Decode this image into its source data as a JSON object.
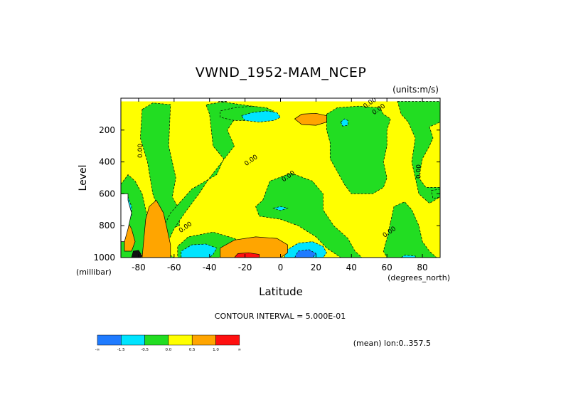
{
  "chart_data": {
    "type": "heatmap",
    "title": "VWND_1952-MAM_NCEP",
    "units_label": "(units:m/s)",
    "xlabel": "Latitude",
    "ylabel": "Level",
    "x_unit_label": "(degrees_north)",
    "y_unit_label": "(millibar)",
    "xlim": [
      -90,
      90
    ],
    "ylim": [
      1000,
      0
    ],
    "x_ticks": [
      -80,
      -60,
      -40,
      -20,
      0,
      20,
      40,
      60,
      80
    ],
    "y_ticks": [
      200,
      400,
      600,
      800,
      1000
    ],
    "contour_interval_label": "CONTOUR INTERVAL = 5.000E-01",
    "footer_label": "(mean) lon:0..357.5",
    "contour_labels": [
      {
        "text": "0.00",
        "x": 51,
        "y": 40
      },
      {
        "text": "0.00",
        "x": 56,
        "y": 80
      },
      {
        "text": "0.00",
        "x": -78,
        "y": 330
      },
      {
        "text": "0.00",
        "x": -16,
        "y": 400
      },
      {
        "text": "0.00",
        "x": 5,
        "y": 500
      },
      {
        "text": "0.00",
        "x": 79,
        "y": 460
      },
      {
        "text": "0.00",
        "x": -53,
        "y": 820
      },
      {
        "text": "0.00",
        "x": 62,
        "y": 850
      }
    ],
    "colorbar": {
      "colors": [
        "#1f7bff",
        "#00e4ff",
        "#22dd22",
        "#ffff00",
        "#ffa500",
        "#ff1010"
      ],
      "labels": [
        "-∞",
        "-1.5",
        "-0.5",
        "0.0",
        "0.5",
        "1.0",
        "∞"
      ]
    },
    "regions": [
      {
        "level": 0,
        "color": "#ffff00",
        "note": "background 0.0 to 0.5",
        "poly": [
          [
            -90,
            20
          ],
          [
            90,
            20
          ],
          [
            90,
            1000
          ],
          [
            -90,
            1000
          ]
        ]
      },
      {
        "level": -1,
        "color": "#22dd22",
        "poly": [
          [
            -78,
            70
          ],
          [
            -72,
            30
          ],
          [
            -62,
            40
          ],
          [
            -63,
            300
          ],
          [
            -59,
            500
          ],
          [
            -61,
            620
          ],
          [
            -57,
            700
          ],
          [
            -57,
            800
          ],
          [
            -63,
            820
          ],
          [
            -67,
            750
          ],
          [
            -72,
            600
          ],
          [
            -75,
            400
          ],
          [
            -79,
            250
          ]
        ]
      },
      {
        "level": -1,
        "color": "#22dd22",
        "poly": [
          [
            -35,
            20
          ],
          [
            -10,
            60
          ],
          [
            -24,
            100
          ],
          [
            -30,
            200
          ],
          [
            -26,
            300
          ],
          [
            -40,
            500
          ],
          [
            -46,
            600
          ],
          [
            -54,
            720
          ],
          [
            -60,
            820
          ],
          [
            -66,
            960
          ],
          [
            -60,
            1000
          ],
          [
            -66,
            1000
          ],
          [
            -70,
            900
          ],
          [
            -62,
            720
          ],
          [
            -50,
            570
          ],
          [
            -36,
            480
          ],
          [
            -32,
            380
          ],
          [
            -38,
            300
          ],
          [
            -40,
            100
          ],
          [
            -42,
            40
          ],
          [
            -30,
            20
          ]
        ]
      },
      {
        "level": -1,
        "color": "#22dd22",
        "poly": [
          [
            -30,
            960
          ],
          [
            -35,
            1000
          ],
          [
            -46,
            1000
          ],
          [
            -58,
            1000
          ],
          [
            -58,
            930
          ],
          [
            -52,
            870
          ],
          [
            -38,
            840
          ],
          [
            -26,
            880
          ],
          [
            -20,
            920
          ],
          [
            -14,
            960
          ],
          [
            -8,
            1000
          ],
          [
            -20,
            1000
          ]
        ]
      },
      {
        "level": -1,
        "color": "#22dd22",
        "poly": [
          [
            -16,
            50
          ],
          [
            -8,
            60
          ],
          [
            -4,
            80
          ],
          [
            -8,
            120
          ],
          [
            -16,
            140
          ],
          [
            -26,
            140
          ],
          [
            -34,
            120
          ],
          [
            -34,
            80
          ],
          [
            -26,
            60
          ]
        ]
      },
      {
        "level": -1,
        "color": "#22dd22",
        "poly": [
          [
            -10,
            640
          ],
          [
            -6,
            520
          ],
          [
            6,
            470
          ],
          [
            18,
            520
          ],
          [
            24,
            600
          ],
          [
            24,
            700
          ],
          [
            30,
            800
          ],
          [
            38,
            880
          ],
          [
            42,
            960
          ],
          [
            46,
            1000
          ],
          [
            34,
            1000
          ],
          [
            26,
            940
          ],
          [
            20,
            870
          ],
          [
            10,
            800
          ],
          [
            0,
            760
          ],
          [
            -12,
            740
          ],
          [
            -14,
            680
          ]
        ]
      },
      {
        "level": -1,
        "color": "#22dd22",
        "poly": [
          [
            26,
            100
          ],
          [
            32,
            60
          ],
          [
            44,
            50
          ],
          [
            56,
            60
          ],
          [
            58,
            100
          ],
          [
            62,
            130
          ],
          [
            60,
            200
          ],
          [
            60,
            300
          ],
          [
            58,
            400
          ],
          [
            60,
            500
          ],
          [
            58,
            560
          ],
          [
            52,
            600
          ],
          [
            40,
            600
          ],
          [
            36,
            540
          ],
          [
            32,
            460
          ],
          [
            28,
            380
          ],
          [
            28,
            280
          ],
          [
            26,
            200
          ]
        ]
      },
      {
        "level": -1,
        "color": "#22dd22",
        "poly": [
          [
            66,
            20
          ],
          [
            90,
            20
          ],
          [
            90,
            150
          ],
          [
            84,
            180
          ],
          [
            86,
            250
          ],
          [
            84,
            300
          ],
          [
            80,
            380
          ],
          [
            78,
            500
          ],
          [
            82,
            560
          ],
          [
            90,
            560
          ],
          [
            90,
            620
          ],
          [
            84,
            660
          ],
          [
            78,
            600
          ],
          [
            76,
            500
          ],
          [
            74,
            400
          ],
          [
            76,
            250
          ],
          [
            72,
            150
          ],
          [
            68,
            100
          ]
        ]
      },
      {
        "level": -1,
        "color": "#22dd22",
        "poly": [
          [
            62,
            780
          ],
          [
            64,
            680
          ],
          [
            70,
            650
          ],
          [
            74,
            700
          ],
          [
            78,
            800
          ],
          [
            80,
            900
          ],
          [
            84,
            960
          ],
          [
            88,
            1000
          ],
          [
            60,
            1000
          ],
          [
            58,
            960
          ],
          [
            60,
            880
          ]
        ]
      },
      {
        "level": -1,
        "color": "#22dd22",
        "poly": [
          [
            -90,
            540
          ],
          [
            -86,
            480
          ],
          [
            -82,
            520
          ],
          [
            -78,
            600
          ],
          [
            -76,
            700
          ],
          [
            -74,
            800
          ],
          [
            -72,
            880
          ],
          [
            -75,
            960
          ],
          [
            -82,
            1000
          ],
          [
            -90,
            1000
          ]
        ]
      },
      {
        "level": -1,
        "color": "#22dd22",
        "poly": [
          [
            85,
            580
          ],
          [
            90,
            570
          ],
          [
            90,
            620
          ],
          [
            86,
            630
          ]
        ]
      },
      {
        "level": -2,
        "color": "#00e4ff",
        "poly": [
          [
            -22,
            110
          ],
          [
            -16,
            90
          ],
          [
            -8,
            80
          ],
          [
            -2,
            90
          ],
          [
            0,
            120
          ],
          [
            -4,
            140
          ],
          [
            -12,
            150
          ],
          [
            -20,
            140
          ]
        ]
      },
      {
        "level": -2,
        "color": "#00e4ff",
        "poly": [
          [
            34,
            150
          ],
          [
            36,
            130
          ],
          [
            38,
            140
          ],
          [
            38,
            170
          ],
          [
            35,
            175
          ]
        ]
      },
      {
        "level": -2,
        "color": "#00e4ff",
        "poly": [
          [
            -4,
            690
          ],
          [
            0,
            680
          ],
          [
            4,
            690
          ],
          [
            0,
            705
          ]
        ]
      },
      {
        "level": -2,
        "color": "#00e4ff",
        "poly": [
          [
            -56,
            1000
          ],
          [
            -56,
            960
          ],
          [
            -50,
            920
          ],
          [
            -42,
            915
          ],
          [
            -36,
            940
          ],
          [
            -38,
            980
          ],
          [
            -40,
            1000
          ]
        ]
      },
      {
        "level": -2,
        "color": "#00e4ff",
        "poly": [
          [
            2,
            1000
          ],
          [
            4,
            950
          ],
          [
            10,
            910
          ],
          [
            18,
            900
          ],
          [
            24,
            930
          ],
          [
            26,
            970
          ],
          [
            24,
            1000
          ]
        ]
      },
      {
        "level": -2,
        "color": "#00e4ff",
        "poly": [
          [
            -90,
            640
          ],
          [
            -86,
            620
          ],
          [
            -84,
            680
          ],
          [
            -84,
            740
          ],
          [
            -86,
            760
          ],
          [
            -90,
            760
          ]
        ]
      },
      {
        "level": -2,
        "color": "#00e4ff",
        "poly": [
          [
            68,
            1000
          ],
          [
            70,
            985
          ],
          [
            76,
            990
          ],
          [
            76,
            1000
          ]
        ]
      },
      {
        "level": -3,
        "color": "#1f7bff",
        "poly": [
          [
            8,
            1000
          ],
          [
            10,
            960
          ],
          [
            16,
            950
          ],
          [
            20,
            975
          ],
          [
            18,
            1000
          ]
        ]
      },
      {
        "level": 1,
        "color": "#ffa500",
        "poly": [
          [
            8,
            130
          ],
          [
            12,
            100
          ],
          [
            20,
            95
          ],
          [
            26,
            110
          ],
          [
            26,
            150
          ],
          [
            20,
            170
          ],
          [
            12,
            165
          ]
        ]
      },
      {
        "level": 1,
        "color": "#ffa500",
        "poly": [
          [
            -34,
            1000
          ],
          [
            -34,
            940
          ],
          [
            -26,
            890
          ],
          [
            -14,
            870
          ],
          [
            -2,
            880
          ],
          [
            4,
            920
          ],
          [
            4,
            970
          ],
          [
            0,
            1000
          ]
        ]
      },
      {
        "level": 1,
        "color": "#ffa500",
        "poly": [
          [
            -76,
            760
          ],
          [
            -74,
            680
          ],
          [
            -70,
            640
          ],
          [
            -66,
            720
          ],
          [
            -64,
            820
          ],
          [
            -62,
            920
          ],
          [
            -62,
            1000
          ],
          [
            -78,
            1000
          ]
        ]
      },
      {
        "level": 1,
        "color": "#ffa500",
        "poly": [
          [
            -88,
            800
          ],
          [
            -86,
            780
          ],
          [
            -84,
            820
          ],
          [
            -82,
            900
          ],
          [
            -84,
            960
          ],
          [
            -88,
            960
          ]
        ]
      },
      {
        "level": 2,
        "color": "#ff1010",
        "poly": [
          [
            -26,
            1000
          ],
          [
            -24,
            975
          ],
          [
            -18,
            970
          ],
          [
            -12,
            980
          ],
          [
            -12,
            1000
          ]
        ]
      },
      {
        "level": 3,
        "color": "#111111",
        "poly": [
          [
            -84,
            1000
          ],
          [
            -83,
            960
          ],
          [
            -80,
            955
          ],
          [
            -78,
            990
          ],
          [
            -79,
            1000
          ]
        ]
      },
      {
        "level": 9,
        "color": "#ffffff",
        "note": "missing data",
        "poly": [
          [
            -90,
            600
          ],
          [
            -86,
            600
          ],
          [
            -86,
            640
          ],
          [
            -84,
            720
          ],
          [
            -86,
            820
          ],
          [
            -88,
            900
          ],
          [
            -90,
            900
          ]
        ]
      }
    ]
  }
}
